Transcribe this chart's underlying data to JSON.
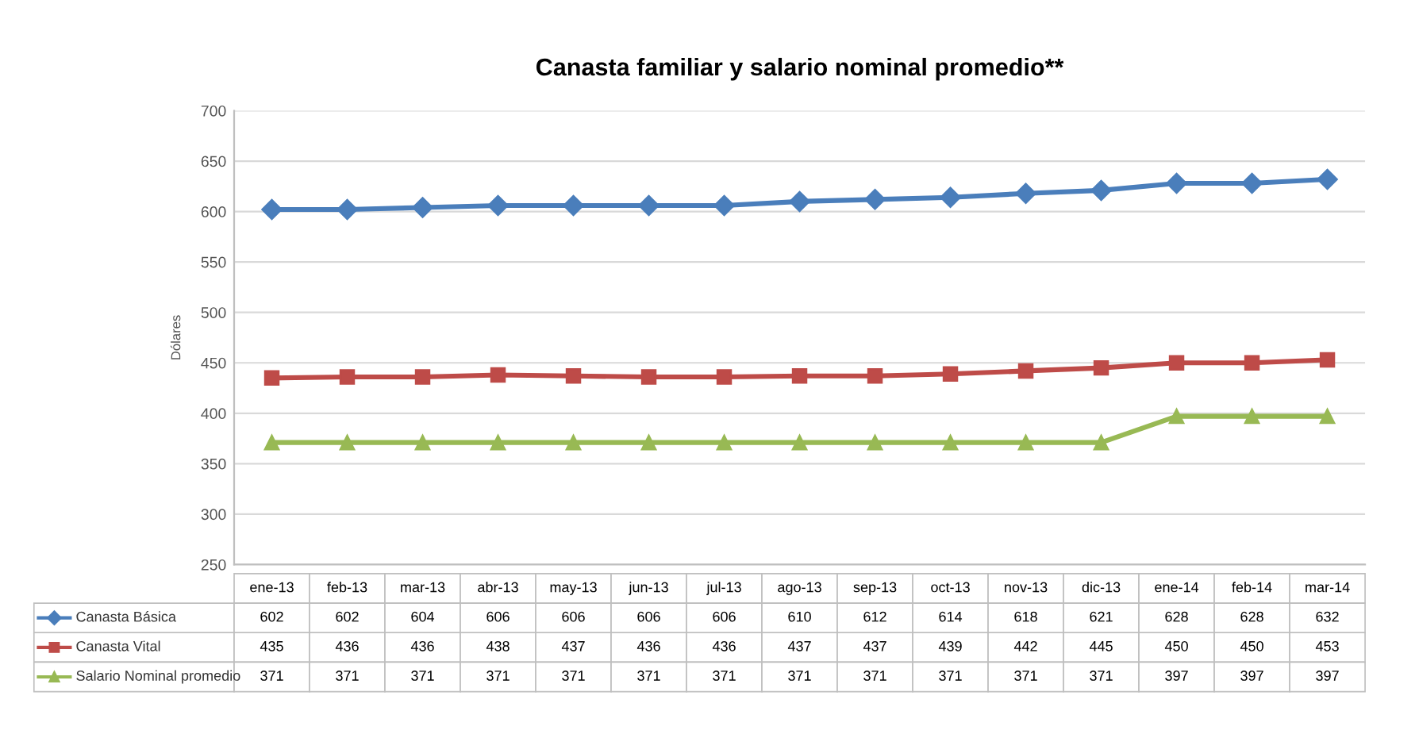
{
  "chart_data": {
    "type": "line",
    "title": "Canasta familiar y salario nominal promedio**",
    "ylabel": "Dólares",
    "categories": [
      "ene-13",
      "feb-13",
      "mar-13",
      "abr-13",
      "may-13",
      "jun-13",
      "jul-13",
      "ago-13",
      "sep-13",
      "oct-13",
      "nov-13",
      "dic-13",
      "ene-14",
      "feb-14",
      "mar-14"
    ],
    "series": [
      {
        "name": "Canasta Básica",
        "color": "#4a7ebb",
        "marker": "diamond",
        "values": [
          602,
          602,
          604,
          606,
          606,
          606,
          606,
          610,
          612,
          614,
          618,
          621,
          628,
          628,
          632
        ]
      },
      {
        "name": "Canasta Vital",
        "color": "#be4b48",
        "marker": "square",
        "values": [
          435,
          436,
          436,
          438,
          437,
          436,
          436,
          437,
          437,
          439,
          442,
          445,
          450,
          450,
          453
        ]
      },
      {
        "name": "Salario Nominal promedio",
        "color": "#98b954",
        "marker": "triangle",
        "values": [
          371,
          371,
          371,
          371,
          371,
          371,
          371,
          371,
          371,
          371,
          371,
          371,
          397,
          397,
          397
        ]
      }
    ],
    "ylim": [
      250,
      700
    ],
    "yticks": [
      250,
      300,
      350,
      400,
      450,
      500,
      550,
      600,
      650,
      700
    ],
    "grid": "y",
    "legend": "bottom left",
    "data_labels": true
  }
}
